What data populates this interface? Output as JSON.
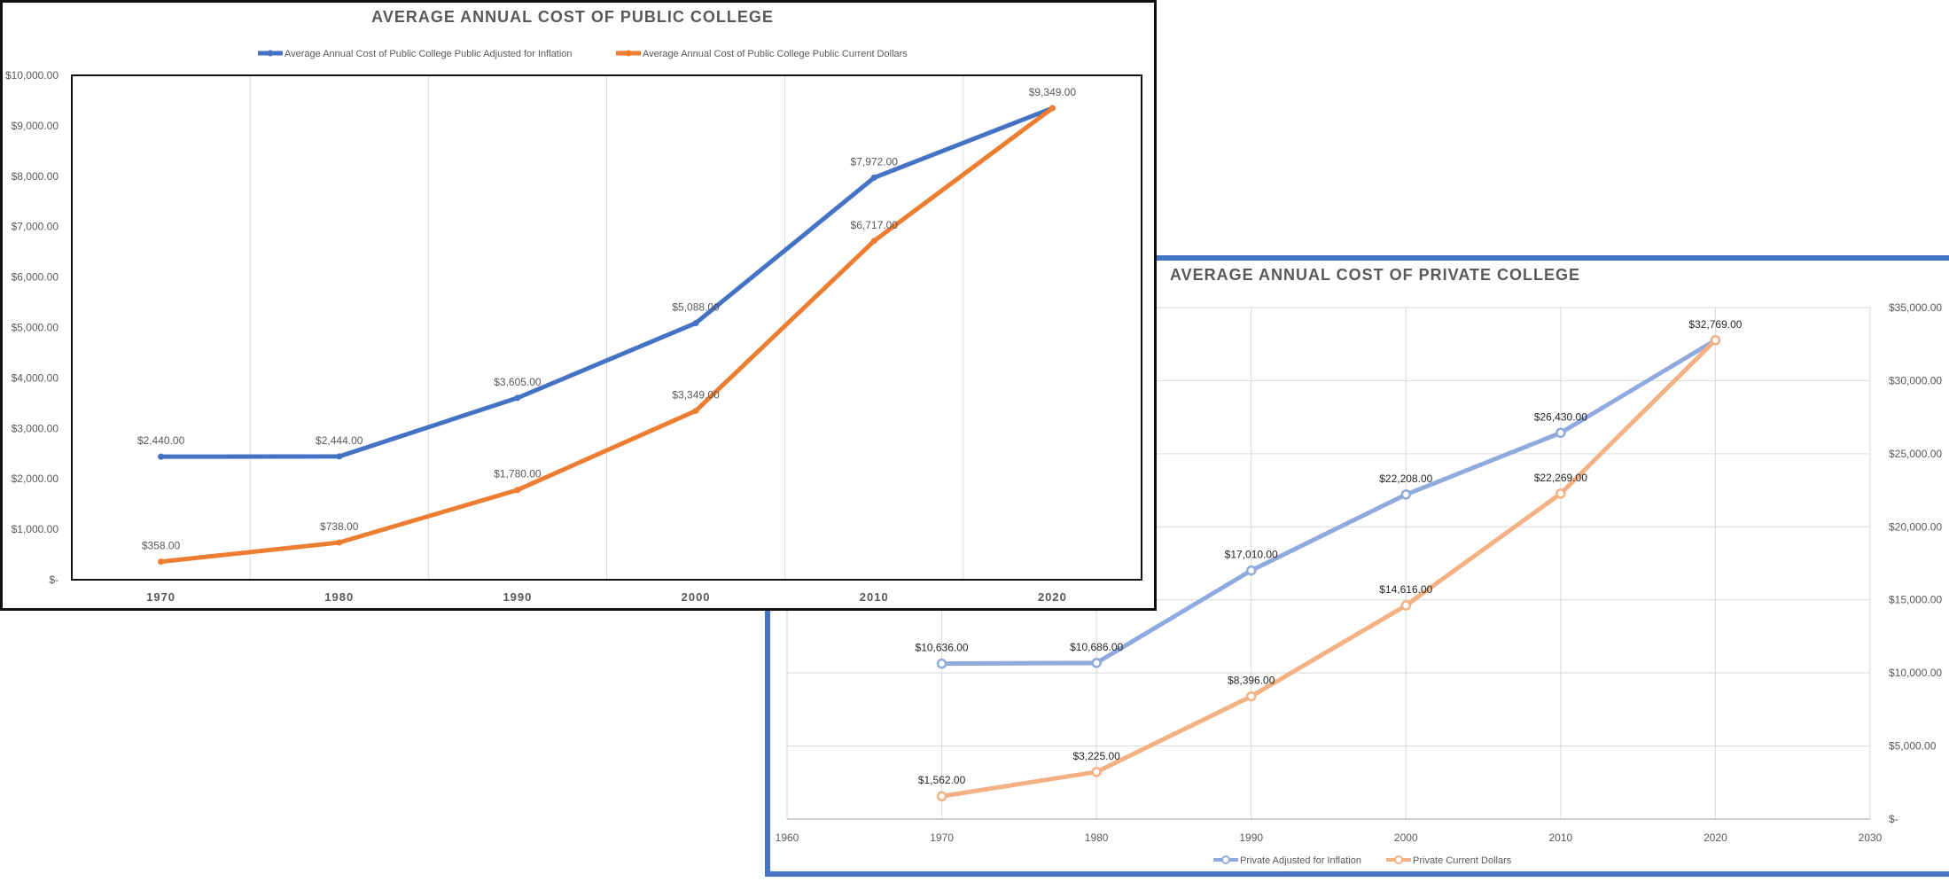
{
  "chart_data": [
    {
      "id": "public",
      "type": "line",
      "title": "AVERAGE ANNUAL COST OF PUBLIC COLLEGE",
      "categories": [
        "1970",
        "1980",
        "1990",
        "2000",
        "2010",
        "2020"
      ],
      "yticks": [
        "$-",
        "$1,000.00",
        "$2,000.00",
        "$3,000.00",
        "$4,000.00",
        "$5,000.00",
        "$6,000.00",
        "$7,000.00",
        "$8,000.00",
        "$9,000.00",
        "$10,000.00"
      ],
      "ylim": [
        0,
        10000
      ],
      "grid": "vertical",
      "legend": "top",
      "series": [
        {
          "name": "Average Annual Cost of Public College Public Adjusted for Inflation",
          "color": "#4472c4",
          "values": [
            2440,
            2444,
            3605,
            5088,
            7972,
            9349
          ],
          "labels": [
            "$2,440.00",
            "$2,444.00",
            "$3,605.00",
            "$5,088.00",
            "$7,972.00",
            "$9,349.00"
          ]
        },
        {
          "name": "Average Annual Cost of Public College Public Current Dollars",
          "color": "#ed7d31",
          "values": [
            358,
            738,
            1780,
            3349,
            6717,
            9349
          ],
          "labels": [
            "$358.00",
            "$738.00",
            "$1,780.00",
            "$3,349.00",
            "$6,717.00",
            ""
          ]
        }
      ]
    },
    {
      "id": "private",
      "type": "line",
      "title": "AVERAGE ANNUAL COST OF PRIVATE COLLEGE",
      "xticks": [
        "1960",
        "1970",
        "1980",
        "1990",
        "2000",
        "2010",
        "2020",
        "2030"
      ],
      "xlim": [
        1960,
        2030
      ],
      "yticks": [
        "$-",
        "$5,000.00",
        "$10,000.00",
        "$15,000.00",
        "$20,000.00",
        "$25,000.00",
        "$30,000.00",
        "$35,000.00"
      ],
      "ylim": [
        0,
        35000
      ],
      "grid": "both",
      "legend": "bottom",
      "series": [
        {
          "name": "Private Adjusted for Inflation",
          "color": "#8faadc",
          "x": [
            1970,
            1980,
            1990,
            2000,
            2010,
            2020
          ],
          "values": [
            10636,
            10686,
            17010,
            22208,
            26430,
            32769
          ],
          "labels": [
            "$10,636.00",
            "$10,686.00",
            "$17,010.00",
            "$22,208.00",
            "$26,430.00",
            "$32,769.00"
          ]
        },
        {
          "name": "Private Current Dollars",
          "color": "#f4b183",
          "x": [
            1970,
            1980,
            1990,
            2000,
            2010,
            2020
          ],
          "values": [
            1562,
            3225,
            8396,
            14616,
            22269,
            32769
          ],
          "labels": [
            "$1,562.00",
            "$3,225.00",
            "$8,396.00",
            "$14,616.00",
            "$22,269.00",
            ""
          ]
        }
      ]
    }
  ]
}
